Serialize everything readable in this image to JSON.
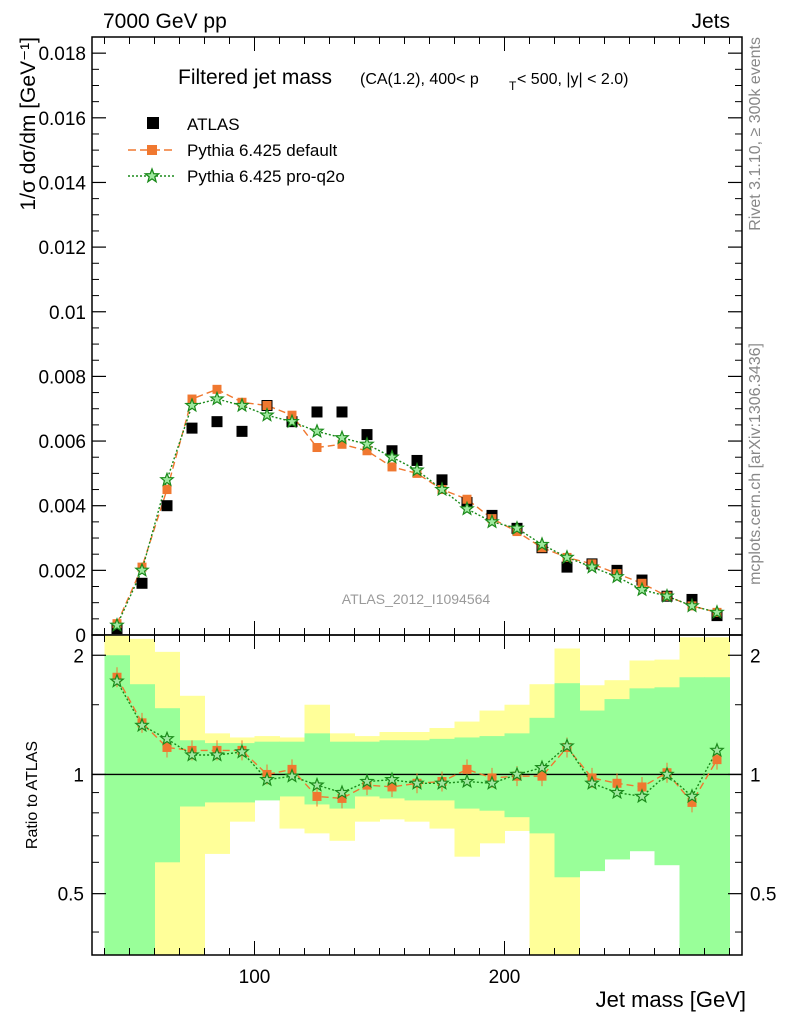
{
  "header": {
    "left": "7000 GeV pp",
    "right": "Jets",
    "side_rivet": "Rivet 3.1.10, ≥ 300k events",
    "side_mcplots": "mcplots.cern.ch [arXiv:1306.3436]",
    "watermark": "ATLAS_2012_I1094564"
  },
  "colors": {
    "atlas": "#000000",
    "default": "#f07830",
    "proq2o": "#1a8a1a",
    "band_inner": "#99ff99",
    "band_outer": "#ffff99"
  },
  "chart_data": [
    {
      "type": "scatter",
      "title": "Filtered jet mass",
      "subtitle": "(CA(1.2), 400< p_T < 500, |y| < 2.0)",
      "title_parts": [
        "Filtered jet mass",
        "(CA(1.2), 400< p",
        "T",
        " < 500, |y| < 2.0)"
      ],
      "ylabel": "1/σ dσ/dm [GeV⁻¹]",
      "xlim": [
        35,
        295
      ],
      "ylim": [
        0,
        0.0185
      ],
      "yticks": [
        0,
        0.002,
        0.004,
        0.006,
        0.008,
        0.01,
        0.012,
        0.014,
        0.016,
        0.018
      ],
      "ytick_labels": [
        "0",
        "0.002",
        "0.004",
        "0.006",
        "0.008",
        "0.01",
        "0.012",
        "0.014",
        "0.016",
        "0.018"
      ],
      "legend": "top-left",
      "x": [
        45,
        55,
        65,
        75,
        85,
        95,
        105,
        115,
        125,
        135,
        145,
        155,
        165,
        175,
        185,
        195,
        205,
        215,
        225,
        235,
        245,
        255,
        265,
        275,
        285
      ],
      "series": [
        {
          "name": "ATLAS",
          "marker": "square",
          "values": [
            0.0002,
            0.0016,
            0.004,
            0.0064,
            0.0066,
            0.0063,
            0.0071,
            0.0066,
            0.0069,
            0.0069,
            0.0062,
            0.0057,
            0.0054,
            0.0048,
            0.0041,
            0.0037,
            0.0033,
            0.0027,
            0.0021,
            0.0022,
            0.002,
            0.0017,
            0.0012,
            0.0011,
            0.0006
          ]
        },
        {
          "name": "Pythia 6.425 default",
          "marker": "filled-square-dashed",
          "values": [
            0.00035,
            0.0021,
            0.0045,
            0.0073,
            0.0076,
            0.0072,
            0.0071,
            0.0068,
            0.0058,
            0.0059,
            0.0057,
            0.0052,
            0.005,
            0.0045,
            0.0042,
            0.0036,
            0.0032,
            0.0027,
            0.0024,
            0.0022,
            0.0019,
            0.0016,
            0.0012,
            0.0009,
            0.0007
          ]
        },
        {
          "name": "Pythia 6.425 pro-q2o",
          "marker": "star-dotted",
          "values": [
            0.0003,
            0.002,
            0.0048,
            0.0071,
            0.0073,
            0.0071,
            0.0068,
            0.0066,
            0.0063,
            0.0061,
            0.0059,
            0.0055,
            0.0051,
            0.0045,
            0.0039,
            0.0035,
            0.0033,
            0.0028,
            0.0024,
            0.0021,
            0.0018,
            0.0014,
            0.0012,
            0.0009,
            0.0007
          ]
        }
      ]
    },
    {
      "type": "line",
      "ylabel": "Ratio to ATLAS",
      "xlabel": "Jet mass [GeV]",
      "xlim": [
        35,
        295
      ],
      "ylim": [
        0.35,
        2.25
      ],
      "yticks": [
        0.5,
        1,
        2
      ],
      "ytick_labels": [
        "0.5",
        "1",
        "2"
      ],
      "xticks": [
        100,
        200
      ],
      "xtick_labels": [
        "100",
        "200"
      ],
      "reference_line": 1,
      "x": [
        45,
        55,
        65,
        75,
        85,
        95,
        105,
        115,
        125,
        135,
        145,
        155,
        165,
        175,
        185,
        195,
        205,
        215,
        225,
        235,
        245,
        255,
        265,
        275,
        285
      ],
      "bands": {
        "inner_low": [
          0.35,
          0.35,
          0.6,
          0.83,
          0.85,
          0.85,
          0.86,
          0.88,
          0.84,
          0.82,
          0.88,
          0.87,
          0.86,
          0.86,
          0.82,
          0.81,
          0.78,
          0.71,
          0.55,
          0.57,
          0.61,
          0.64,
          0.59,
          0.35,
          0.35
        ],
        "inner_high": [
          2.0,
          1.69,
          1.47,
          1.22,
          1.2,
          1.2,
          1.21,
          1.21,
          1.27,
          1.21,
          1.21,
          1.22,
          1.22,
          1.23,
          1.24,
          1.25,
          1.27,
          1.39,
          1.7,
          1.45,
          1.55,
          1.65,
          1.66,
          1.76,
          1.76
        ],
        "outer_low": [
          0.35,
          0.35,
          0.35,
          0.35,
          0.63,
          0.76,
          0.9,
          0.73,
          0.71,
          0.68,
          0.76,
          0.77,
          0.76,
          0.73,
          0.62,
          0.67,
          0.72,
          0.35,
          0.35,
          0.64,
          0.71,
          0.68,
          0.65,
          0.35,
          0.42
        ],
        "outer_high": [
          2.25,
          2.2,
          2.04,
          1.58,
          1.27,
          1.24,
          1.25,
          1.24,
          1.5,
          1.27,
          1.25,
          1.28,
          1.28,
          1.31,
          1.36,
          1.45,
          1.5,
          1.69,
          2.08,
          1.68,
          1.73,
          1.94,
          1.95,
          2.22,
          2.22
        ]
      },
      "series": [
        {
          "name": "Pythia 6.425 default",
          "values": [
            1.76,
            1.35,
            1.17,
            1.15,
            1.15,
            1.15,
            1.0,
            1.03,
            0.88,
            0.87,
            0.94,
            0.93,
            0.95,
            0.96,
            1.03,
            0.98,
            0.99,
            0.99,
            1.17,
            0.98,
            0.95,
            0.93,
            1.01,
            0.85,
            1.09
          ]
        },
        {
          "name": "Pythia 6.425 pro-q2o",
          "values": [
            1.72,
            1.33,
            1.23,
            1.12,
            1.12,
            1.14,
            0.97,
            0.99,
            0.94,
            0.9,
            0.96,
            0.97,
            0.95,
            0.95,
            0.96,
            0.95,
            1.0,
            1.04,
            1.18,
            0.95,
            0.9,
            0.88,
            1.0,
            0.88,
            1.15
          ]
        }
      ]
    }
  ]
}
